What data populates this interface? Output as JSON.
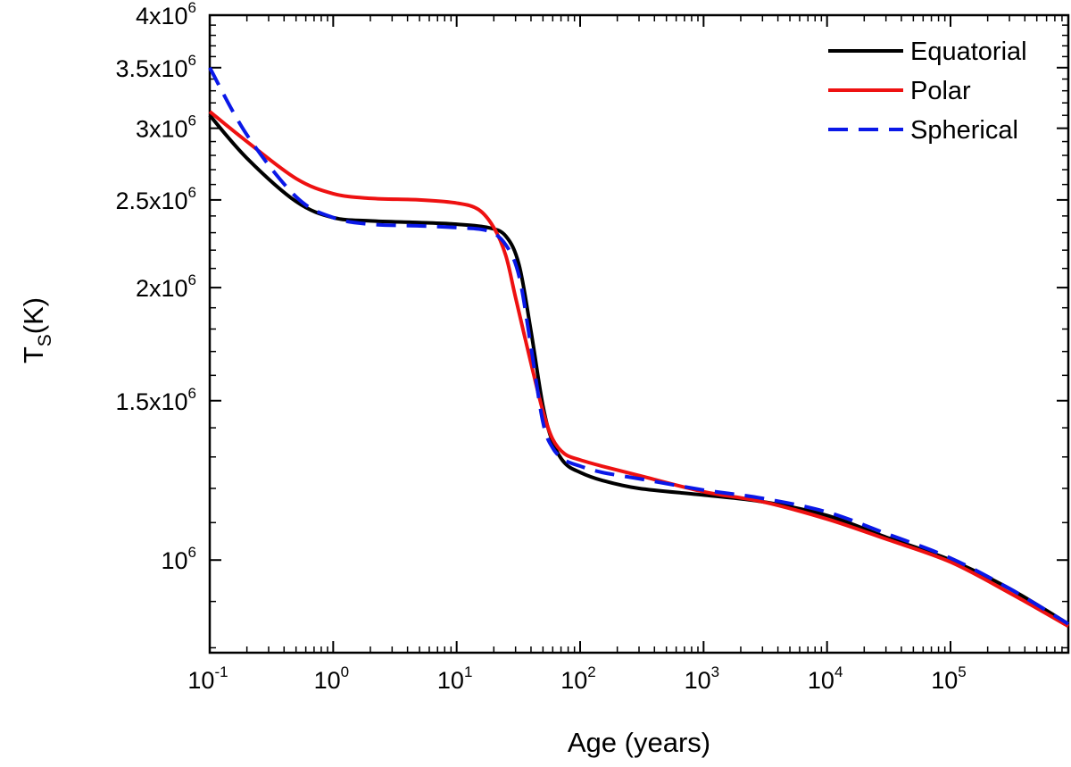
{
  "chart_data": {
    "type": "line",
    "title": "",
    "xlabel": "Age (years)",
    "ylabel": "T",
    "ylabel_subscript": "S",
    "ylabel_unit": "(K)",
    "xscale": "log",
    "yscale": "log",
    "xlim": [
      0.1,
      900000
    ],
    "ylim": [
      790000,
      4000000
    ],
    "x_ticks": [
      {
        "value": 0.1,
        "base": "10",
        "exp": "-1"
      },
      {
        "value": 1,
        "base": "10",
        "exp": "0"
      },
      {
        "value": 10,
        "base": "10",
        "exp": "1"
      },
      {
        "value": 100,
        "base": "10",
        "exp": "2"
      },
      {
        "value": 1000,
        "base": "10",
        "exp": "3"
      },
      {
        "value": 10000,
        "base": "10",
        "exp": "4"
      },
      {
        "value": 100000,
        "base": "10",
        "exp": "5"
      }
    ],
    "y_ticks": [
      {
        "value": 1000000,
        "mant": "",
        "base": "10",
        "exp": "6"
      },
      {
        "value": 1500000,
        "mant": "1.5x",
        "base": "10",
        "exp": "6"
      },
      {
        "value": 2000000,
        "mant": "2x",
        "base": "10",
        "exp": "6"
      },
      {
        "value": 2500000,
        "mant": "2.5x",
        "base": "10",
        "exp": "6"
      },
      {
        "value": 3000000,
        "mant": "3x",
        "base": "10",
        "exp": "6"
      },
      {
        "value": 3500000,
        "mant": "3.5x",
        "base": "10",
        "exp": "6"
      },
      {
        "value": 4000000,
        "mant": "4x",
        "base": "10",
        "exp": "6"
      }
    ],
    "legend_position": "top-right",
    "series": [
      {
        "name": "Equatorial",
        "color": "#000000",
        "dash": "solid",
        "x": [
          0.1,
          0.2,
          0.5,
          1,
          2,
          5,
          10,
          18,
          25,
          32,
          40,
          50,
          60,
          75,
          100,
          150,
          300,
          1000,
          3000,
          10000,
          30000,
          100000,
          300000,
          900000
        ],
        "y": [
          3100000,
          2780000,
          2490000,
          2390000,
          2370000,
          2360000,
          2350000,
          2330000,
          2280000,
          2120000,
          1790000,
          1480000,
          1350000,
          1280000,
          1250000,
          1225000,
          1200000,
          1180000,
          1160000,
          1120000,
          1060000,
          1000000,
          930000,
          850000
        ]
      },
      {
        "name": "Polar",
        "color": "#ee1111",
        "dash": "solid",
        "x": [
          0.1,
          0.2,
          0.5,
          1,
          2,
          5,
          10,
          15,
          20,
          25,
          30,
          40,
          50,
          60,
          75,
          100,
          150,
          300,
          1000,
          3000,
          10000,
          30000,
          100000,
          300000,
          900000
        ],
        "y": [
          3130000,
          2900000,
          2640000,
          2540000,
          2510000,
          2500000,
          2480000,
          2440000,
          2330000,
          2170000,
          1950000,
          1650000,
          1460000,
          1360000,
          1310000,
          1290000,
          1270000,
          1240000,
          1190000,
          1160000,
          1110000,
          1055000,
          995000,
          920000,
          845000
        ]
      },
      {
        "name": "Spherical",
        "color": "#0a18e8",
        "dash": "dashed",
        "x": [
          0.1,
          0.2,
          0.5,
          1,
          2,
          5,
          10,
          18,
          25,
          32,
          40,
          50,
          60,
          75,
          100,
          150,
          300,
          1000,
          3000,
          10000,
          30000,
          100000,
          300000,
          900000
        ],
        "y": [
          3500000,
          2950000,
          2520000,
          2390000,
          2350000,
          2340000,
          2330000,
          2310000,
          2230000,
          2060000,
          1720000,
          1420000,
          1330000,
          1290000,
          1270000,
          1250000,
          1230000,
          1195000,
          1170000,
          1130000,
          1070000,
          1005000,
          930000,
          850000
        ]
      }
    ]
  }
}
